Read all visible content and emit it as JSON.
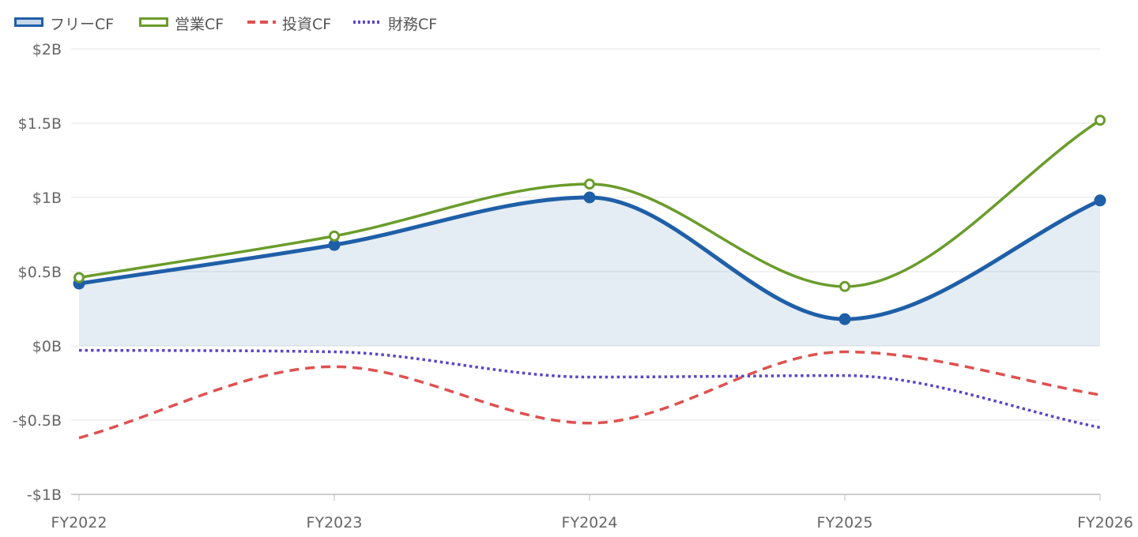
{
  "chart_data": {
    "type": "line",
    "categories": [
      "FY2022",
      "FY2023",
      "FY2024",
      "FY2025",
      "FY2026"
    ],
    "ylim": [
      -1,
      2
    ],
    "yticks": [
      {
        "value": 2,
        "label": "$2B"
      },
      {
        "value": 1.5,
        "label": "$1.5B"
      },
      {
        "value": 1,
        "label": "$1B"
      },
      {
        "value": 0.5,
        "label": "$0.5B"
      },
      {
        "value": 0,
        "label": "$0B"
      },
      {
        "value": -0.5,
        "label": "-$0.5B"
      },
      {
        "value": -1,
        "label": "-$1B"
      }
    ],
    "grid": true,
    "legend_position": "top-left",
    "series": [
      {
        "name": "フリーCF",
        "values": [
          0.42,
          0.68,
          1.0,
          0.18,
          0.98
        ],
        "color": "#1f5fa8",
        "style": "solid",
        "fill": true,
        "markers": "filled"
      },
      {
        "name": "営業CF",
        "values": [
          0.46,
          0.74,
          1.09,
          0.4,
          1.52
        ],
        "color": "#6a9c2b",
        "style": "solid",
        "fill": false,
        "markers": "hollow"
      },
      {
        "name": "投資CF",
        "values": [
          -0.62,
          -0.14,
          -0.52,
          -0.04,
          -0.33
        ],
        "color": "#e05050",
        "style": "dashed",
        "fill": false,
        "markers": "none"
      },
      {
        "name": "財務CF",
        "values": [
          -0.03,
          -0.04,
          -0.21,
          -0.2,
          -0.55
        ],
        "color": "#5a45c8",
        "style": "dotted",
        "fill": false,
        "markers": "none"
      }
    ]
  }
}
